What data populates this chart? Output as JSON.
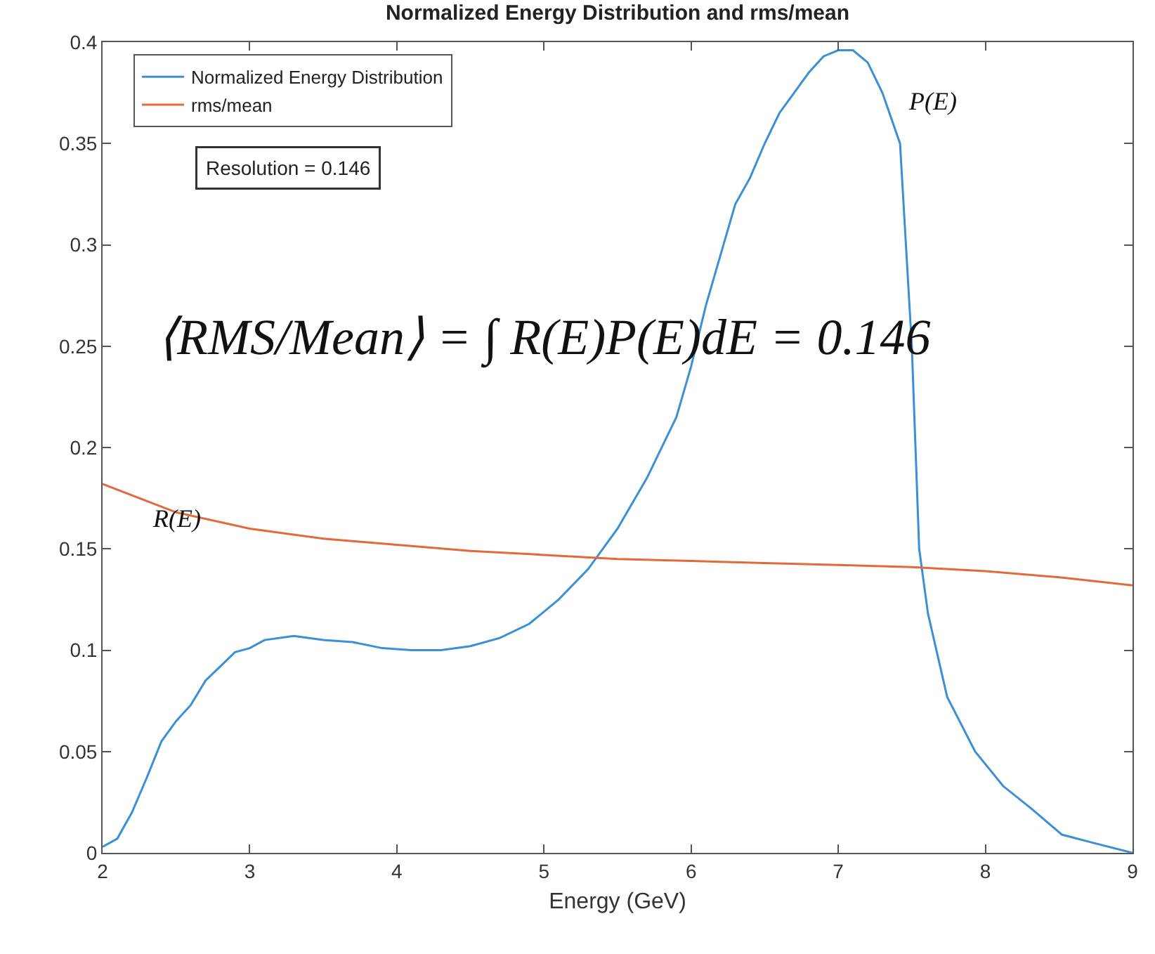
{
  "chart_data": {
    "type": "line",
    "title": "Normalized Energy Distribution and rms/mean",
    "xlabel": "Energy (GeV)",
    "xlim": [
      2,
      9
    ],
    "xticks": [
      2,
      3,
      4,
      5,
      6,
      7,
      8,
      9
    ],
    "ylim": [
      0,
      0.4
    ],
    "yticks": [
      0,
      0.05,
      0.1,
      0.15,
      0.2,
      0.25,
      0.3,
      0.35,
      0.4
    ],
    "legend": "top left",
    "marker": "none",
    "line_style": "solid",
    "series": [
      {
        "name": "Normalized Energy Distribution",
        "color": "#3a8fd6",
        "x": [
          2.0,
          2.1,
          2.2,
          2.3,
          2.4,
          2.5,
          2.6,
          2.7,
          2.8,
          2.9,
          3.0,
          3.1,
          3.3,
          3.5,
          3.7,
          3.9,
          4.1,
          4.3,
          4.5,
          4.7,
          4.9,
          5.1,
          5.3,
          5.5,
          5.7,
          5.9,
          6.0,
          6.1,
          6.2,
          6.3,
          6.4,
          6.5,
          6.6,
          6.7,
          6.8,
          6.9,
          7.0,
          7.1,
          7.2,
          7.3,
          7.42,
          7.5,
          7.55,
          7.61,
          7.74,
          7.93,
          8.12,
          8.31,
          8.52,
          8.73,
          9.0
        ],
        "values": [
          0.003,
          0.007,
          0.02,
          0.037,
          0.055,
          0.065,
          0.073,
          0.085,
          0.092,
          0.099,
          0.101,
          0.105,
          0.107,
          0.105,
          0.104,
          0.101,
          0.1,
          0.1,
          0.102,
          0.106,
          0.113,
          0.125,
          0.14,
          0.16,
          0.185,
          0.215,
          0.24,
          0.27,
          0.295,
          0.32,
          0.333,
          0.35,
          0.365,
          0.375,
          0.385,
          0.393,
          0.396,
          0.396,
          0.39,
          0.375,
          0.35,
          0.25,
          0.15,
          0.118,
          0.077,
          0.05,
          0.033,
          0.022,
          0.009,
          0.005,
          0.0
        ]
      },
      {
        "name": "rms/mean",
        "color": "#e06a3a",
        "x": [
          2.0,
          2.5,
          3.0,
          3.5,
          4.0,
          4.5,
          5.0,
          5.5,
          6.0,
          6.5,
          7.0,
          7.5,
          8.0,
          8.5,
          9.0
        ],
        "values": [
          0.182,
          0.168,
          0.16,
          0.155,
          0.152,
          0.149,
          0.147,
          0.145,
          0.144,
          0.143,
          0.142,
          0.141,
          0.139,
          0.136,
          0.132
        ]
      }
    ],
    "annotations": [
      "Resolution = 0.146",
      "⟨RMS/Mean⟩ = ∫ R(E)P(E)dE = 0.146",
      "P(E)",
      {
        "text": "R(E)",
        "x": 2.5,
        "y": 0.165
      }
    ]
  }
}
